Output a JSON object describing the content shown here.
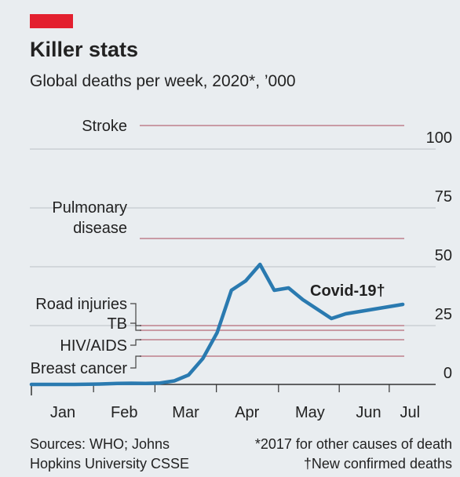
{
  "chart_data": {
    "type": "line",
    "title": "Killer stats",
    "subtitle": "Global deaths per week, 2020*, ’000",
    "x": [
      0,
      1,
      2,
      3,
      4,
      5,
      6,
      7,
      8,
      9,
      10,
      11,
      12,
      13,
      14,
      15,
      16,
      17,
      18,
      19,
      20,
      21,
      22,
      23,
      24,
      25,
      26
    ],
    "series": [
      {
        "name": "Covid-19†",
        "color": "#2a7ab0",
        "values": [
          0,
          0,
          0,
          0,
          0.1,
          0.2,
          0.4,
          0.5,
          0.4,
          0.6,
          1.5,
          4,
          11,
          22,
          40,
          44,
          51,
          40,
          41,
          36,
          32,
          28,
          30,
          31,
          32,
          33,
          34
        ]
      }
    ],
    "reference_lines": [
      {
        "label": [
          "Stroke"
        ],
        "value": 110
      },
      {
        "label": [
          "Pulmonary",
          "disease"
        ],
        "value": 62
      },
      {
        "label": [
          "Road injuries"
        ],
        "value": 25
      },
      {
        "label": [
          "TB"
        ],
        "value": 23
      },
      {
        "label": [
          "HIV/AIDS"
        ],
        "value": 19
      },
      {
        "label": [
          "Breast cancer"
        ],
        "value": 12
      }
    ],
    "reference_color": "#c99ba5",
    "xlim": [
      0,
      28.3
    ],
    "xticks": [
      {
        "value": 2.2,
        "label": "Jan"
      },
      {
        "value": 6.5,
        "label": "Feb"
      },
      {
        "value": 10.8,
        "label": "Mar"
      },
      {
        "value": 15.1,
        "label": "Apr"
      },
      {
        "value": 19.5,
        "label": "May"
      },
      {
        "value": 23.6,
        "label": "Jun"
      },
      {
        "value": 26.5,
        "label": "Jul"
      }
    ],
    "ylim": [
      0,
      110
    ],
    "yticks": [
      0,
      25,
      50,
      75,
      100
    ],
    "grid": true,
    "sources": [
      "Sources: WHO; Johns",
      "Hopkins University CSSE"
    ],
    "notes": [
      "*2017 for other causes of death",
      "†New confirmed deaths"
    ]
  }
}
